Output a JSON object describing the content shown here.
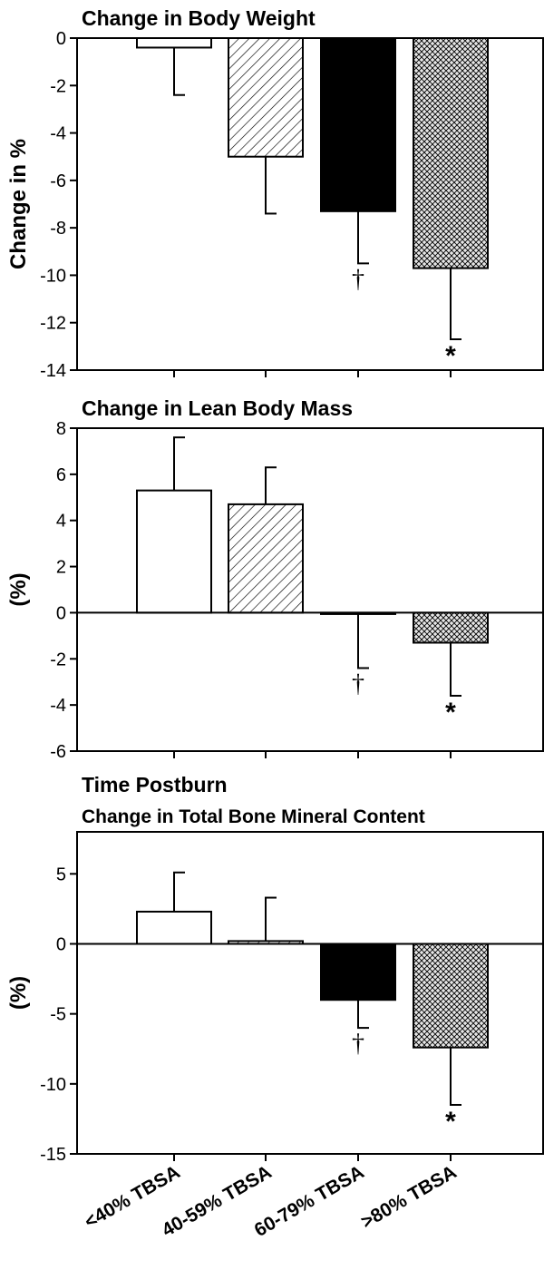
{
  "chart_data": [
    {
      "type": "bar",
      "title": "Change in Body Weight",
      "subtitle": "",
      "ylabel": "Change in %",
      "categories": [
        "<40% TBSA",
        "40-59% TBSA",
        "60-79% TBSA",
        ">80% TBSA"
      ],
      "values": [
        -0.4,
        -5.0,
        -7.3,
        -9.7
      ],
      "errors": [
        2.0,
        2.4,
        2.2,
        3.0
      ],
      "markers": [
        "",
        "",
        "†",
        "*"
      ],
      "ylim": [
        -14,
        0
      ],
      "yticks": [
        0,
        -2,
        -4,
        -6,
        -8,
        -10,
        -12,
        -14
      ]
    },
    {
      "type": "bar",
      "title": "Change in Lean Body Mass",
      "subtitle": "",
      "ylabel": "(%)",
      "categories": [
        "<40% TBSA",
        "40-59% TBSA",
        "60-79% TBSA",
        ">80% TBSA"
      ],
      "values": [
        5.3,
        4.7,
        -0.05,
        -1.3
      ],
      "errors": [
        2.3,
        1.6,
        2.35,
        2.3
      ],
      "markers": [
        "",
        "",
        "†",
        "*"
      ],
      "ylim": [
        -6,
        8
      ],
      "yticks": [
        8,
        6,
        4,
        2,
        0,
        -2,
        -4,
        -6
      ]
    },
    {
      "type": "bar",
      "title": "Time Postburn",
      "subtitle": "Change in Total Bone Mineral Content",
      "ylabel": "(%)",
      "categories": [
        "<40% TBSA",
        "40-59% TBSA",
        "60-79% TBSA",
        ">80% TBSA"
      ],
      "values": [
        2.3,
        0.2,
        -4.0,
        -7.4
      ],
      "errors": [
        2.8,
        3.1,
        2.0,
        4.1
      ],
      "markers": [
        "",
        "",
        "†",
        "*"
      ],
      "ylim": [
        -15,
        8
      ],
      "yticks": [
        5,
        0,
        -5,
        -10,
        -15
      ]
    }
  ],
  "colors": {
    "axis": "#000000",
    "solid_fill": "#000000",
    "pattern_fill": "#e6e6e6",
    "open_fill": "#ffffff"
  },
  "bar_fills": [
    "open",
    "diagonal-hatch",
    "solid",
    "crosshatch"
  ]
}
